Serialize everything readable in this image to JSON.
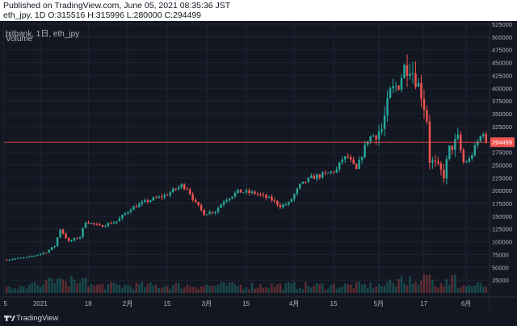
{
  "header": {
    "published": "Published on TradingView.com, June 05, 2021 08:35:36 JST",
    "symbol_line": "eth_jpy, 1D O:315516 H:315996 L:280000 C:294499"
  },
  "pane": {
    "title": "bitbank, 1日, eth_jpy",
    "volume_label": "Volume"
  },
  "footer": {
    "brand": "TradingView"
  },
  "colors": {
    "background": "#131722",
    "up": "#26a69a",
    "down": "#ef5350",
    "grid": "#1f2433",
    "price_line": "#ef5350"
  },
  "chart_data": {
    "type": "candlestick",
    "title": "bitbank, 1日, eth_jpy",
    "last_price": 294499,
    "last_price_label": "294499",
    "ylim": [
      0,
      525000
    ],
    "y_ticks": [
      {
        "label": "525000",
        "value": 525000
      },
      {
        "label": "500000",
        "value": 500000
      },
      {
        "label": "475000",
        "value": 475000
      },
      {
        "label": "450000",
        "value": 450000
      },
      {
        "label": "425000",
        "value": 425000
      },
      {
        "label": "400000",
        "value": 400000
      },
      {
        "label": "375000",
        "value": 375000
      },
      {
        "label": "350000",
        "value": 350000
      },
      {
        "label": "325000",
        "value": 325000
      },
      {
        "label": "275000",
        "value": 275000
      },
      {
        "label": "250000",
        "value": 250000
      },
      {
        "label": "225000",
        "value": 225000
      },
      {
        "label": "200000",
        "value": 200000
      },
      {
        "label": "175000",
        "value": 175000
      },
      {
        "label": "150000",
        "value": 150000
      },
      {
        "label": "125000",
        "value": 125000
      },
      {
        "label": "100000",
        "value": 100000
      },
      {
        "label": "75000",
        "value": 75000
      },
      {
        "label": "50000",
        "value": 50000
      },
      {
        "label": "25000",
        "value": 25000
      }
    ],
    "x_ticks": [
      {
        "label": "5",
        "day": -1
      },
      {
        "label": "2021",
        "day": 12
      },
      {
        "label": "18",
        "day": 29
      },
      {
        "label": "2月",
        "day": 43
      },
      {
        "label": "15",
        "day": 57
      },
      {
        "label": "3月",
        "day": 71
      },
      {
        "label": "15",
        "day": 85
      },
      {
        "label": "4月",
        "day": 102
      },
      {
        "label": "15",
        "day": 116
      },
      {
        "label": "5月",
        "day": 132
      },
      {
        "label": "17",
        "day": 148
      },
      {
        "label": "6月",
        "day": 163
      }
    ],
    "series_shape": {
      "days": 171,
      "keypoints": [
        [
          0,
          65000
        ],
        [
          8,
          70000
        ],
        [
          14,
          80000
        ],
        [
          17,
          92000
        ],
        [
          19,
          125000
        ],
        [
          22,
          100000
        ],
        [
          26,
          110000
        ],
        [
          28,
          140000
        ],
        [
          33,
          130000
        ],
        [
          39,
          140000
        ],
        [
          44,
          165000
        ],
        [
          50,
          180000
        ],
        [
          56,
          190000
        ],
        [
          62,
          210000
        ],
        [
          64,
          205000
        ],
        [
          67,
          175000
        ],
        [
          70,
          155000
        ],
        [
          74,
          160000
        ],
        [
          77,
          180000
        ],
        [
          82,
          198000
        ],
        [
          88,
          195000
        ],
        [
          94,
          182000
        ],
        [
          97,
          170000
        ],
        [
          100,
          175000
        ],
        [
          104,
          210000
        ],
        [
          108,
          225000
        ],
        [
          113,
          232000
        ],
        [
          117,
          240000
        ],
        [
          119,
          262000
        ],
        [
          121,
          265000
        ],
        [
          124,
          240000
        ],
        [
          128,
          300000
        ],
        [
          133,
          320000
        ],
        [
          136,
          390000
        ],
        [
          139,
          410000
        ],
        [
          141,
          440000
        ],
        [
          143,
          445000
        ],
        [
          145,
          420000
        ],
        [
          147,
          390000
        ],
        [
          149,
          340000
        ],
        [
          150,
          260000
        ],
        [
          152,
          250000
        ],
        [
          155,
          230000
        ],
        [
          157,
          280000
        ],
        [
          160,
          300000
        ],
        [
          162,
          255000
        ],
        [
          164,
          260000
        ],
        [
          167,
          295000
        ],
        [
          169,
          315500
        ],
        [
          170,
          294499
        ]
      ]
    },
    "volume_units_max": 100
  }
}
